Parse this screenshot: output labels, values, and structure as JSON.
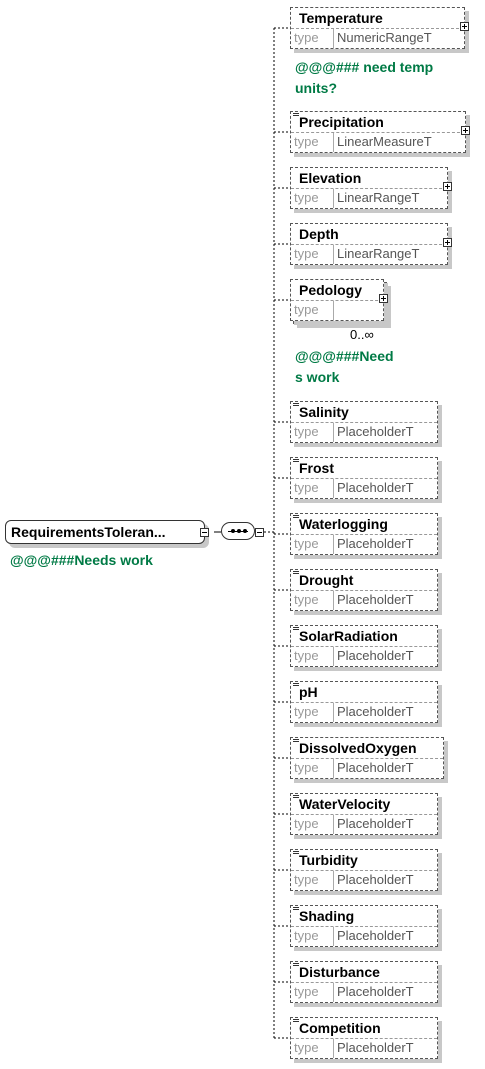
{
  "root": {
    "name": "RequirementsToleran...",
    "annotation": "@@@###Needs work"
  },
  "elements": [
    {
      "name": "Temperature",
      "type_label": "type",
      "type": "NumericRangeT",
      "annotation": [
        "@@@### need temp",
        "units?"
      ]
    },
    {
      "name": "Precipitation",
      "type_label": "type",
      "type": "LinearMeasureT"
    },
    {
      "name": "Elevation",
      "type_label": "type",
      "type": "LinearRangeT"
    },
    {
      "name": "Depth",
      "type_label": "type",
      "type": "LinearRangeT"
    },
    {
      "name": "Pedology",
      "type_label": "type",
      "type": "",
      "cardinality": "0..∞",
      "annotation": [
        "@@@###Need",
        "s work"
      ]
    },
    {
      "name": "Salinity",
      "type_label": "type",
      "type": "PlaceholderT"
    },
    {
      "name": "Frost",
      "type_label": "type",
      "type": "PlaceholderT"
    },
    {
      "name": "Waterlogging",
      "type_label": "type",
      "type": "PlaceholderT"
    },
    {
      "name": "Drought",
      "type_label": "type",
      "type": "PlaceholderT"
    },
    {
      "name": "SolarRadiation",
      "type_label": "type",
      "type": "PlaceholderT"
    },
    {
      "name": "pH",
      "type_label": "type",
      "type": "PlaceholderT"
    },
    {
      "name": "DissolvedOxygen",
      "type_label": "type",
      "type": "PlaceholderT"
    },
    {
      "name": "WaterVelocity",
      "type_label": "type",
      "type": "PlaceholderT"
    },
    {
      "name": "Turbidity",
      "type_label": "type",
      "type": "PlaceholderT"
    },
    {
      "name": "Shading",
      "type_label": "type",
      "type": "PlaceholderT"
    },
    {
      "name": "Disturbance",
      "type_label": "type",
      "type": "PlaceholderT"
    },
    {
      "name": "Competition",
      "type_label": "type",
      "type": "PlaceholderT"
    }
  ],
  "colors": {
    "annotation": "#007a45",
    "border": "#555555",
    "shadow": "#c8c8c8",
    "type_text": "#999999"
  }
}
